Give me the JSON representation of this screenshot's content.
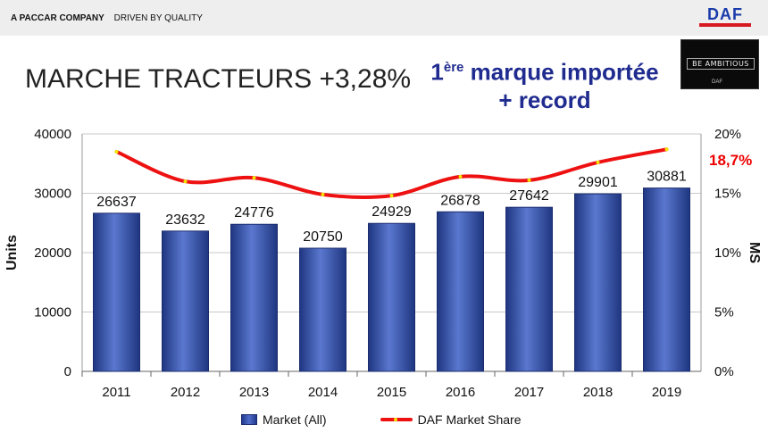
{
  "header": {
    "company": "A PACCAR COMPANY",
    "tagline": "DRIVEN BY QUALITY",
    "logo_text": "DAF"
  },
  "slide": {
    "title": "MARCHE TRACTEURS +3,28%",
    "highlight_line1_sup": "ère",
    "highlight_line1_num": "1",
    "highlight_line1_rest": " marque importée",
    "highlight_line2": "+ record",
    "thumbnail_text": "BE AMBITIOUS",
    "thumbnail_sub": "DAF"
  },
  "colors": {
    "bar": "#2b4596",
    "bar_light": "#5a78cf",
    "line": "#ee1111",
    "marker": "#f2e600",
    "callout": "#ee0000"
  },
  "chart_data": {
    "type": "bar",
    "categories": [
      "2011",
      "2012",
      "2013",
      "2014",
      "2015",
      "2016",
      "2017",
      "2018",
      "2019"
    ],
    "series": [
      {
        "name": "Market (All)",
        "type": "bar",
        "axis": "left",
        "values": [
          26637,
          23632,
          24776,
          20750,
          24929,
          26878,
          27642,
          29901,
          30881
        ]
      },
      {
        "name": "DAF Market Share",
        "type": "line",
        "axis": "right",
        "values": [
          18.5,
          16.0,
          16.3,
          14.9,
          14.8,
          16.4,
          16.1,
          17.6,
          18.7
        ]
      }
    ],
    "ylabel": "Units",
    "y2label": "MS",
    "ylim": [
      0,
      40000
    ],
    "y2lim": [
      0,
      20
    ],
    "yticks": [
      "0",
      "10000",
      "20000",
      "30000",
      "40000"
    ],
    "y2ticks": [
      "0%",
      "5%",
      "10%",
      "15%",
      "20%"
    ],
    "callout": "18,7%",
    "legend": [
      "Market (All)",
      "DAF Market Share"
    ],
    "legend_position": "bottom"
  }
}
